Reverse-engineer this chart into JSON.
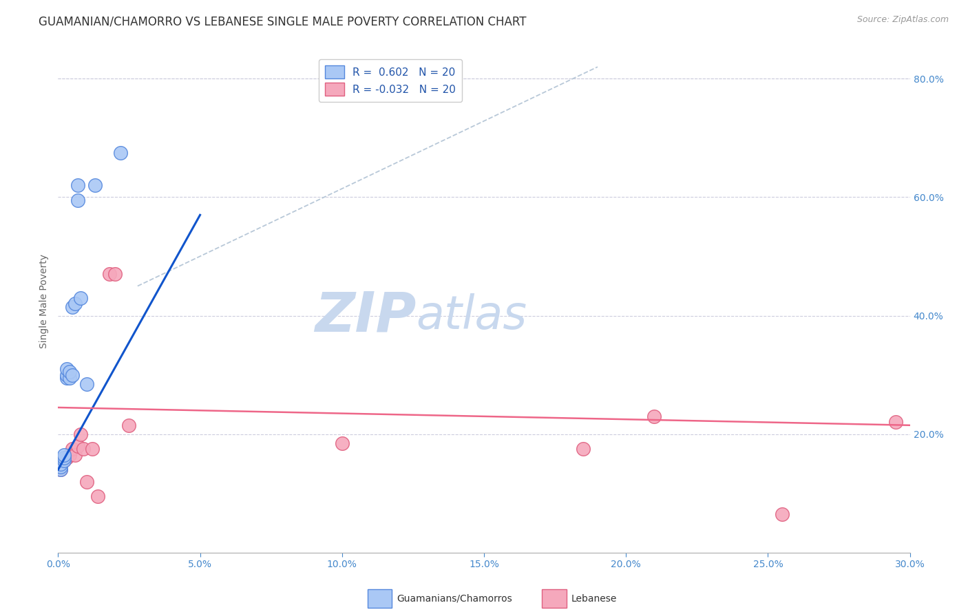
{
  "title": "GUAMANIAN/CHAMORRO VS LEBANESE SINGLE MALE POVERTY CORRELATION CHART",
  "source": "Source: ZipAtlas.com",
  "ylabel": "Single Male Poverty",
  "x_min": 0.0,
  "x_max": 0.3,
  "y_min": 0.0,
  "y_max": 0.85,
  "y_ticks": [
    0.2,
    0.4,
    0.6,
    0.8
  ],
  "x_ticks": [
    0.0,
    0.05,
    0.1,
    0.15,
    0.2,
    0.25,
    0.3
  ],
  "legend_label1": "Guamanians/Chamorros",
  "legend_label2": "Lebanese",
  "r1": 0.602,
  "n1": 20,
  "r2": -0.032,
  "n2": 20,
  "guamanian_x": [
    0.001,
    0.001,
    0.001,
    0.002,
    0.002,
    0.002,
    0.003,
    0.003,
    0.003,
    0.004,
    0.004,
    0.005,
    0.005,
    0.006,
    0.007,
    0.007,
    0.008,
    0.01,
    0.013,
    0.022
  ],
  "guamanian_y": [
    0.14,
    0.145,
    0.15,
    0.155,
    0.16,
    0.165,
    0.295,
    0.3,
    0.31,
    0.295,
    0.305,
    0.415,
    0.3,
    0.42,
    0.595,
    0.62,
    0.43,
    0.285,
    0.62,
    0.675
  ],
  "lebanese_x": [
    0.001,
    0.002,
    0.003,
    0.004,
    0.005,
    0.006,
    0.007,
    0.008,
    0.009,
    0.01,
    0.012,
    0.014,
    0.018,
    0.02,
    0.025,
    0.1,
    0.185,
    0.21,
    0.255,
    0.295
  ],
  "lebanese_y": [
    0.14,
    0.155,
    0.16,
    0.165,
    0.175,
    0.165,
    0.18,
    0.2,
    0.175,
    0.12,
    0.175,
    0.095,
    0.47,
    0.47,
    0.215,
    0.185,
    0.175,
    0.23,
    0.065,
    0.22
  ],
  "guam_color": "#aac8f5",
  "leb_color": "#f5a8bc",
  "guam_edge_color": "#5588dd",
  "leb_edge_color": "#e06080",
  "guam_line_color": "#1155cc",
  "leb_line_color": "#ee6688",
  "diagonal_line_color": "#b8c8d8",
  "background_color": "#ffffff",
  "watermark_zip": "ZIP",
  "watermark_atlas": "atlas",
  "watermark_color_zip": "#c8d8ee",
  "watermark_color_atlas": "#c8d8ee",
  "grid_color": "#ccccdd",
  "title_fontsize": 12,
  "axis_label_fontsize": 10,
  "tick_fontsize": 10,
  "source_fontsize": 9
}
